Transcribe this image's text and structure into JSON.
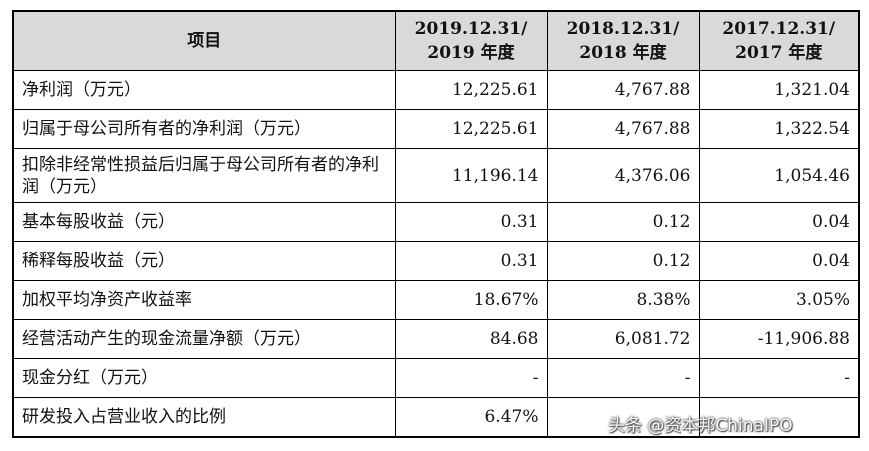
{
  "table": {
    "headers": [
      "项目",
      "2019.12.31/\n2019 年度",
      "2018.12.31/\n2018 年度",
      "2017.12.31/\n2017 年度"
    ],
    "header_lines": [
      [
        "项目"
      ],
      [
        "2019.12.31/",
        "2019 年度"
      ],
      [
        "2018.12.31/",
        "2018 年度"
      ],
      [
        "2017.12.31/",
        "2017 年度"
      ]
    ],
    "rows": [
      {
        "label": "净利润（万元）",
        "values": [
          "12,225.61",
          "4,767.88",
          "1,321.04"
        ]
      },
      {
        "label": "归属于母公司所有者的净利润（万元）",
        "values": [
          "12,225.61",
          "4,767.88",
          "1,322.54"
        ]
      },
      {
        "label": "扣除非经常性损益后归属于母公司所有者的净利润（万元）",
        "values": [
          "11,196.14",
          "4,376.06",
          "1,054.46"
        ]
      },
      {
        "label": "基本每股收益（元）",
        "values": [
          "0.31",
          "0.12",
          "0.04"
        ]
      },
      {
        "label": "稀释每股收益（元）",
        "values": [
          "0.31",
          "0.12",
          "0.04"
        ]
      },
      {
        "label": "加权平均净资产收益率",
        "values": [
          "18.67%",
          "8.38%",
          "3.05%"
        ]
      },
      {
        "label": "经营活动产生的现金流量净额（万元）",
        "values": [
          "84.68",
          "6,081.72",
          "-11,906.88"
        ]
      },
      {
        "label": "现金分红（万元）",
        "values": [
          "-",
          "-",
          "-"
        ]
      },
      {
        "label": "研发投入占营业收入的比例",
        "values": [
          "6.47%",
          "",
          ""
        ]
      }
    ]
  },
  "watermark": "头条 @资本邦ChinaIPO"
}
